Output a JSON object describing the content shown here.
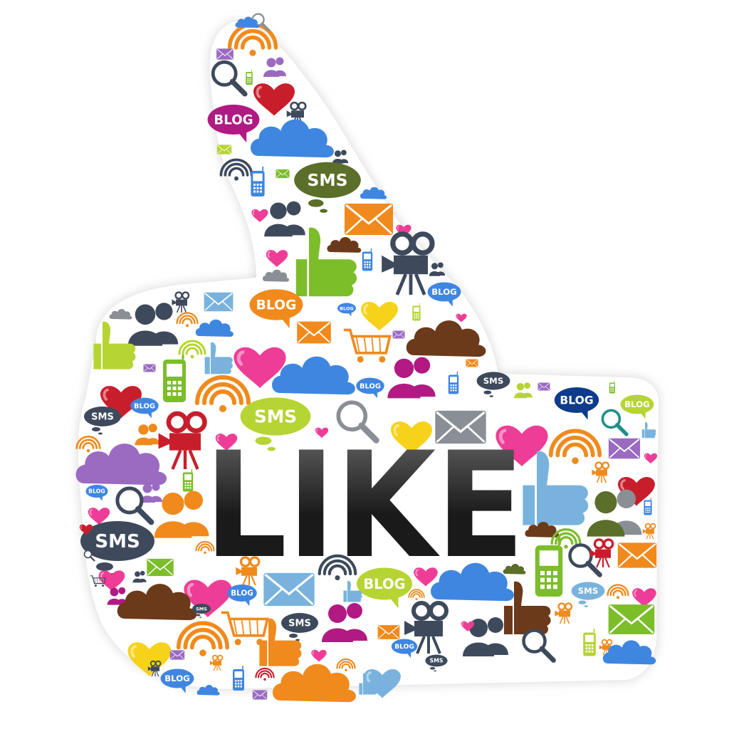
{
  "headline": "LIKE",
  "bubble_labels": {
    "blog": "BLOG",
    "sms": "SMS"
  },
  "colors": {
    "background": "#ffffff",
    "headline_dark": "#1a1a1a",
    "headline_light": "#6b6b6b",
    "outline_shadow": "#cfcfcf",
    "magenta": "#b01a82",
    "red": "#c81e2b",
    "pink": "#ee3d96",
    "yellow": "#f7d21b",
    "orange": "#f08a1d",
    "green": "#7cbd2a",
    "lime": "#b6d433",
    "blue": "#3f86e0",
    "sky": "#79b3dd",
    "navy": "#0e3c8b",
    "brown": "#6b3a1a",
    "purple": "#9a6bc1",
    "slate": "#3e4a5c",
    "gray": "#8a8f96",
    "teal": "#1f8f89",
    "olive": "#5b6e2a"
  },
  "icon_kinds": [
    "heart-icon",
    "cloud-icon",
    "blog-bubble-icon",
    "sms-bubble-icon",
    "speech-bubble-icon",
    "envelope-icon",
    "wifi-icon",
    "magnifier-icon",
    "mobile-phone-icon",
    "movie-camera-icon",
    "people-icon",
    "thumbs-up-icon",
    "shopping-cart-icon"
  ]
}
